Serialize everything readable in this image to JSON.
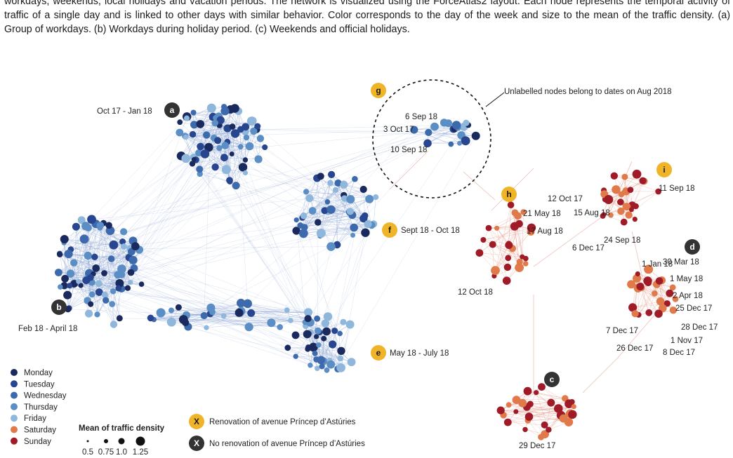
{
  "caption": "workdays, weekends, local holidays and vacation periods. The network is visualized using the ForceAtlas2 layout. Each node represents the temporal activity of traffic of a single day and is linked to other days with similar behavior. Color corresponds to the day of the week and size to the mean of the traffic density. (a) Group of workdays. (b) Workdays during holiday period. (c) Weekends and official holidays.",
  "colors": {
    "monday": "#1b2a5e",
    "tuesday": "#27468f",
    "wednesday": "#3d6aad",
    "thursday": "#5b8ec4",
    "friday": "#8fb7dc",
    "saturday": "#e07a4a",
    "sunday": "#9e1b27",
    "badge_yellow": "#f0b429",
    "badge_dark": "#333333",
    "edge_blue": "#8ea6d4",
    "edge_red": "#e49a8a"
  },
  "badges": [
    {
      "letter": "a",
      "style": "dark",
      "label": "Oct 17 - Jan 18"
    },
    {
      "letter": "b",
      "style": "dark",
      "label": "Feb 18 - April 18"
    },
    {
      "letter": "c",
      "style": "dark",
      "label": ""
    },
    {
      "letter": "d",
      "style": "dark",
      "label": ""
    },
    {
      "letter": "e",
      "style": "yellow",
      "label": "May 18 - July 18"
    },
    {
      "letter": "f",
      "style": "yellow",
      "label": "Sept 18 - Oct 18"
    },
    {
      "letter": "g",
      "style": "yellow",
      "label": ""
    },
    {
      "letter": "h",
      "style": "yellow",
      "label": ""
    },
    {
      "letter": "i",
      "style": "yellow",
      "label": ""
    }
  ],
  "annotation": "Unlabelled nodes belong to dates on Aug 2018",
  "date_labels": [
    "6 Sep 18",
    "3 Oct 17",
    "10 Sep 18",
    "11 Sep 18",
    "21 May 18",
    "17 Aug 18",
    "12 Oct 17",
    "15 Aug 18",
    "6 Dec 17",
    "24 Sep 18",
    "1 Jan 18",
    "30 Mar 18",
    "1 May 18",
    "2 Apr 18",
    "12 Oct 18",
    "25 Dec 17",
    "7 Dec 17",
    "28 Dec 17",
    "1 Nov 17",
    "26 Dec 17",
    "8 Dec 17",
    "29 Dec 17"
  ],
  "legend": {
    "days": [
      {
        "label": "Monday",
        "color": "#1b2a5e"
      },
      {
        "label": "Tuesday",
        "color": "#27468f"
      },
      {
        "label": "Wednesday",
        "color": "#3d6aad"
      },
      {
        "label": "Thursday",
        "color": "#5b8ec4"
      },
      {
        "label": "Friday",
        "color": "#8fb7dc"
      },
      {
        "label": "Saturday",
        "color": "#e07a4a"
      },
      {
        "label": "Sunday",
        "color": "#9e1b27"
      }
    ],
    "size_title": "Mean of traffic density",
    "size_values": [
      "0.5",
      "0.75",
      "1.0",
      "1.25"
    ],
    "badge_letter": "X",
    "renovation": "Renovation of avenue Príncep d’Astúries",
    "no_renovation": "No renovation of  avenue Príncep d’Astúries"
  }
}
